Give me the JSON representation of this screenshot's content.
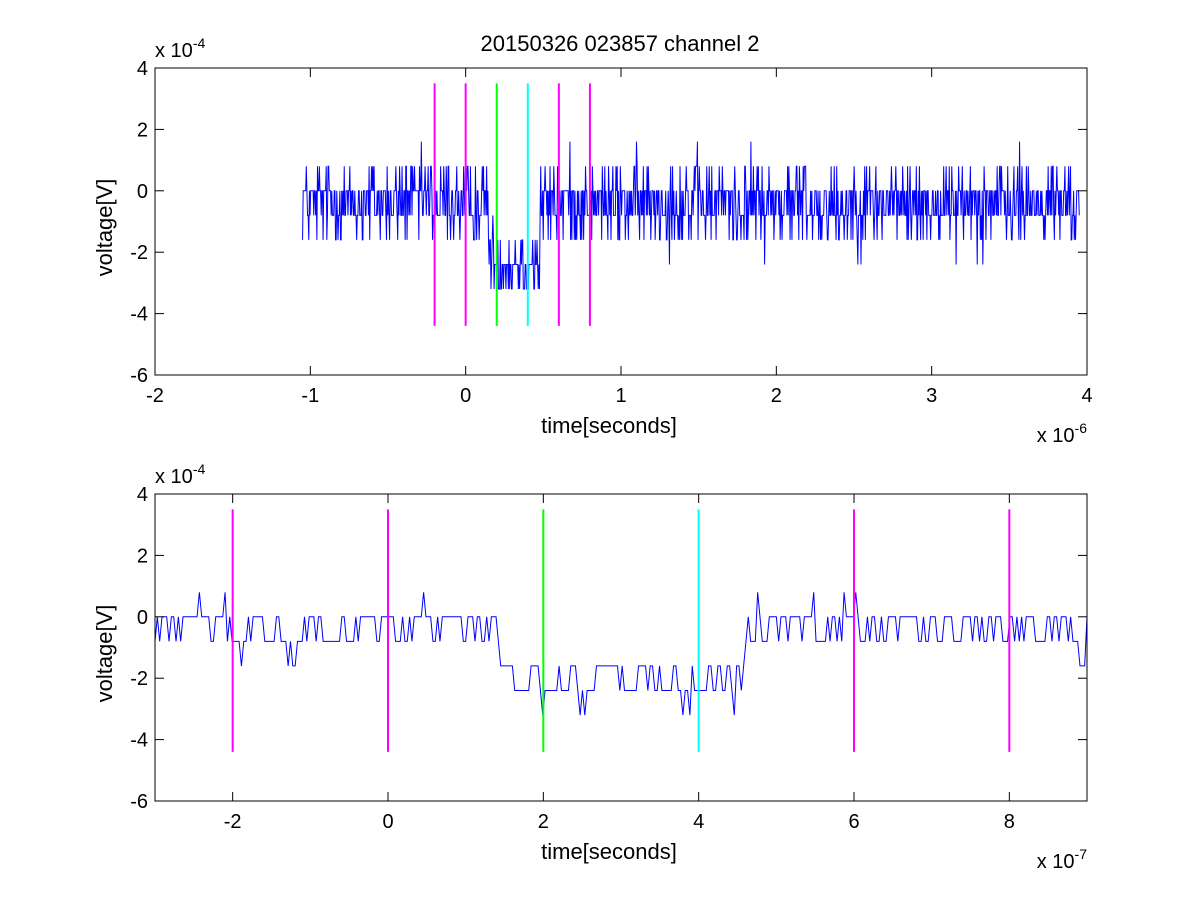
{
  "figure": {
    "title": "20150326 023857 channel 2"
  },
  "chart_data": [
    {
      "type": "line",
      "xlabel": "time[seconds]",
      "ylabel": "voltage[V]",
      "x_multiplier": {
        "base": "x 10",
        "exponent": "-6"
      },
      "y_multiplier": {
        "base": "x 10",
        "exponent": "-4"
      },
      "xlim": [
        -2,
        4
      ],
      "ylim": [
        -6,
        4
      ],
      "xticks": [
        -2,
        -1,
        0,
        1,
        2,
        3,
        4
      ],
      "yticks": [
        -6,
        -4,
        -2,
        0,
        2,
        4
      ],
      "xtick_labels": [
        "-2",
        "-1",
        "0",
        "1",
        "2",
        "3",
        "4"
      ],
      "ytick_labels": [
        "-6",
        "-4",
        "-2",
        "0",
        "2",
        "4"
      ],
      "signal": {
        "color": "#0000ff",
        "x_range": [
          -1.05,
          3.95
        ],
        "levels": [
          -3.2,
          -2.4,
          -1.6,
          -0.8,
          0,
          0.8,
          1.6,
          2.4,
          3.2
        ],
        "baseline_mean": -0.4,
        "dip": {
          "from": 0.15,
          "to": 0.48,
          "mean": -2.3
        }
      },
      "markers": [
        {
          "x": -0.2,
          "y0": -4.4,
          "y1": 3.5,
          "color": "#ff00ff"
        },
        {
          "x": 0.0,
          "y0": -4.4,
          "y1": 3.5,
          "color": "#ff00ff"
        },
        {
          "x": 0.2,
          "y0": -4.4,
          "y1": 3.5,
          "color": "#00ff00"
        },
        {
          "x": 0.4,
          "y0": -4.4,
          "y1": 3.5,
          "color": "#00ffff"
        },
        {
          "x": 0.6,
          "y0": -4.4,
          "y1": 3.5,
          "color": "#ff00ff"
        },
        {
          "x": 0.8,
          "y0": -4.4,
          "y1": 3.5,
          "color": "#ff00ff"
        }
      ]
    },
    {
      "type": "line",
      "xlabel": "time[seconds]",
      "ylabel": "voltage[V]",
      "x_multiplier": {
        "base": "x 10",
        "exponent": "-7"
      },
      "y_multiplier": {
        "base": "x 10",
        "exponent": "-4"
      },
      "xlim": [
        -3,
        9
      ],
      "ylim": [
        -6,
        4
      ],
      "xticks": [
        -2,
        0,
        2,
        4,
        6,
        8
      ],
      "yticks": [
        -6,
        -4,
        -2,
        0,
        2,
        4
      ],
      "xtick_labels": [
        "-2",
        "0",
        "2",
        "4",
        "6",
        "8"
      ],
      "ytick_labels": [
        "-6",
        "-4",
        "-2",
        "0",
        "2",
        "4"
      ],
      "signal": {
        "color": "#0000ff",
        "x_range": [
          -3,
          9
        ],
        "levels": [
          -4.0,
          -3.2,
          -2.4,
          -1.6,
          -0.8,
          0,
          0.8,
          1.6,
          2.4
        ],
        "baseline_mean": -0.3,
        "dip": {
          "from": 1.4,
          "to": 4.6,
          "mean": -2.2
        }
      },
      "markers": [
        {
          "x": -2,
          "y0": -4.4,
          "y1": 3.5,
          "color": "#ff00ff"
        },
        {
          "x": 0,
          "y0": -4.4,
          "y1": 3.5,
          "color": "#ff00ff"
        },
        {
          "x": 2,
          "y0": -4.4,
          "y1": 3.5,
          "color": "#00ff00"
        },
        {
          "x": 4,
          "y0": -4.4,
          "y1": 3.5,
          "color": "#00ffff"
        },
        {
          "x": 6,
          "y0": -4.4,
          "y1": 3.5,
          "color": "#ff00ff"
        },
        {
          "x": 8,
          "y0": -4.4,
          "y1": 3.5,
          "color": "#ff00ff"
        }
      ]
    }
  ]
}
